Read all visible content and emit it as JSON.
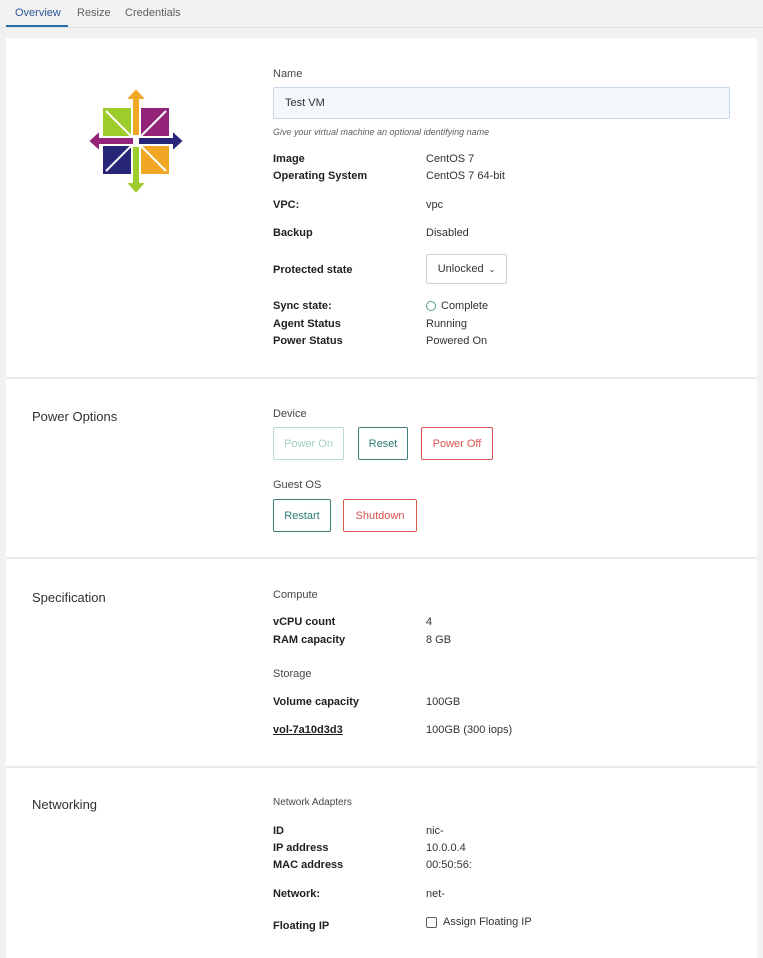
{
  "tabs": [
    {
      "label": "Overview",
      "active": true
    },
    {
      "label": "Resize"
    },
    {
      "label": "Credentials"
    }
  ],
  "overview": {
    "logo": "CentOS",
    "name_label": "Name",
    "name_value": "Test VM",
    "name_hint": "Give your virtual machine an optional identifying name",
    "image_label": "Image",
    "image_value": "CentOS 7",
    "os_label": "Operating System",
    "os_value": "CentOS 7 64-bit",
    "vpc_label": "VPC:",
    "vpc_value": "vpc",
    "backup_label": "Backup",
    "backup_value": "Disabled",
    "protected_label": "Protected state",
    "protected_value": "Unlocked",
    "sync_label": "Sync state:",
    "sync_value": "Complete",
    "agent_label": "Agent Status",
    "agent_value": "Running",
    "power_label": "Power Status",
    "power_value": "Powered On"
  },
  "power": {
    "title": "Power Options",
    "device_label": "Device",
    "power_on": "Power On",
    "reset": "Reset",
    "power_off": "Power Off",
    "guest_label": "Guest OS",
    "restart": "Restart",
    "shutdown": "Shutdown"
  },
  "spec": {
    "title": "Specification",
    "compute_label": "Compute",
    "vcpu_label": "vCPU count",
    "vcpu_value": "4",
    "ram_label": "RAM capacity",
    "ram_value": "8 GB",
    "storage_label": "Storage",
    "volcap_label": "Volume capacity",
    "volcap_value": "100GB",
    "vol_link": "vol-7a10d3d3",
    "vol_value": "100GB (300 iops)"
  },
  "net": {
    "title": "Networking",
    "adapters_label": "Network Adapters",
    "id_label": "ID",
    "id_value": "nic-",
    "ip_label": "IP address",
    "ip_value": "10.0.0.4",
    "mac_label": "MAC address",
    "mac_value": "00:50:56:",
    "network_label": "Network:",
    "network_value": "net-",
    "fip_label": "Floating IP",
    "fip_checkbox": "Assign Floating IP",
    "fip_checked": false
  },
  "colors": {
    "accent": "#2b6cb0",
    "teal": "#2e7c76",
    "danger": "#d9534f"
  }
}
